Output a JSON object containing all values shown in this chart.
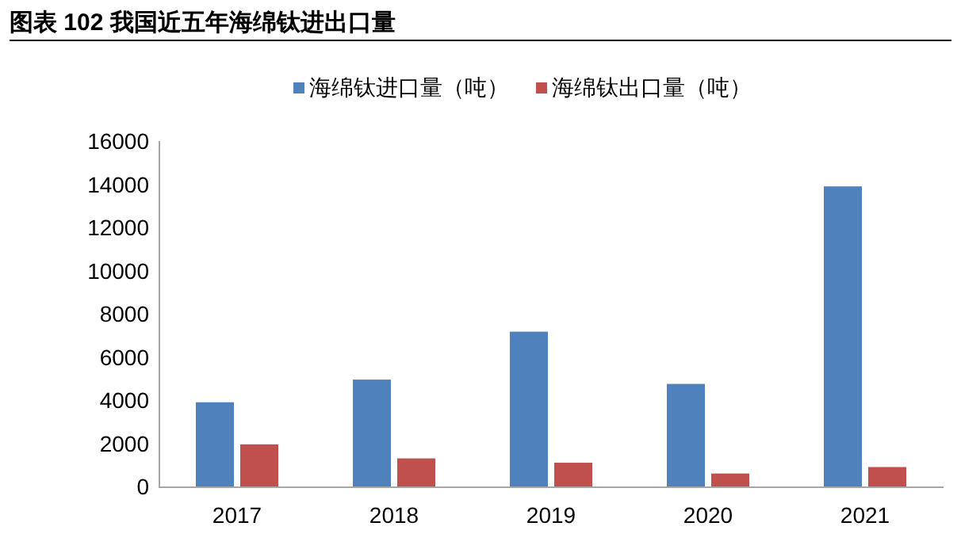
{
  "chart_data": {
    "type": "bar",
    "title": "图表 102  我国近五年海绵钛进出口量",
    "categories": [
      "2017",
      "2018",
      "2019",
      "2020",
      "2021"
    ],
    "series": [
      {
        "name": "海绵钛进口量（吨）",
        "color": "#4f81bd",
        "values": [
          3900,
          4950,
          7170,
          4750,
          13900
        ]
      },
      {
        "name": "海绵钛出口量（吨）",
        "color": "#c0504d",
        "values": [
          1950,
          1300,
          1100,
          600,
          900
        ]
      }
    ],
    "ylim": [
      0,
      16000
    ],
    "yticks": [
      0,
      2000,
      4000,
      6000,
      8000,
      10000,
      12000,
      14000,
      16000
    ],
    "grid": false,
    "legend": "top"
  }
}
